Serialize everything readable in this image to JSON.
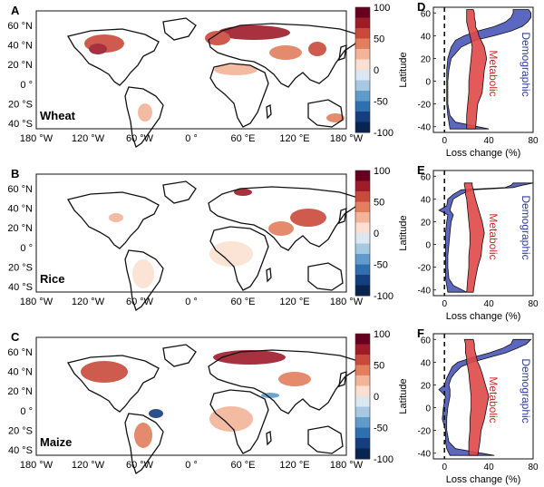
{
  "colors": {
    "coast": "#111111",
    "demographic_fill": "#4a56b8",
    "demographic_text": "#2e3b9e",
    "metabolic_fill": "#e04848",
    "metabolic_text": "#d02a2a",
    "colorbar": [
      "#67001f",
      "#9e1b2a",
      "#c94a3b",
      "#e37f5e",
      "#f3b49a",
      "#fbe0d2",
      "#dbe8f1",
      "#a6c9e1",
      "#5f9ccc",
      "#2f6fb0",
      "#143f7e",
      "#08244f"
    ]
  },
  "map_axes": {
    "lon_ticks": [
      "180 °W",
      "120 °W",
      "60 °W",
      "0 °",
      "60 °E",
      "120 °E",
      "180 °W"
    ],
    "lat_ticks": [
      "60 °N",
      "40 °N",
      "20 °N",
      "0 °",
      "20 °S",
      "40 °S"
    ]
  },
  "colorbar_ticks": [
    "100",
    "50",
    "0",
    "-50",
    "-100"
  ],
  "panels": [
    {
      "letter": "A",
      "crop": "Wheat",
      "profile_letter": "D"
    },
    {
      "letter": "B",
      "crop": "Rice",
      "profile_letter": "E"
    },
    {
      "letter": "C",
      "crop": "Maize",
      "profile_letter": "F"
    }
  ],
  "profile_axes": {
    "ylabel": "Latitude",
    "xlabel": "Loss change (%)",
    "x_ticks": [
      "0",
      "40",
      "80"
    ],
    "y_ticks": [
      "60",
      "40",
      "20",
      "0",
      "-20",
      "-40"
    ],
    "demographic_label": "Demographic",
    "metabolic_label": "Metabolic"
  },
  "chart_data": [
    {
      "type": "area",
      "panel": "D",
      "xlabel": "Loss change (%)",
      "ylabel": "Latitude",
      "xlim": [
        -10,
        80
      ],
      "ylim": [
        -45,
        65
      ],
      "series": [
        {
          "name": "Demographic",
          "lat": [
            -42,
            -36,
            -30,
            -20,
            -10,
            0,
            10,
            20,
            30,
            36,
            40,
            44,
            48,
            52,
            56,
            60,
            63
          ],
          "lower": [
            5,
            4,
            3,
            2,
            2,
            2,
            2,
            3,
            6,
            10,
            18,
            30,
            45,
            55,
            60,
            62,
            62
          ],
          "upper": [
            40,
            10,
            5,
            3,
            3,
            3,
            4,
            6,
            15,
            28,
            45,
            60,
            70,
            75,
            78,
            78,
            76
          ]
        },
        {
          "name": "Metabolic",
          "lat": [
            -42,
            -30,
            -20,
            -10,
            0,
            10,
            20,
            30,
            36,
            40,
            44,
            48,
            52,
            56,
            60,
            63
          ],
          "lower": [
            20,
            20,
            21,
            22,
            22,
            23,
            24,
            25,
            24,
            23,
            22,
            21,
            20,
            20,
            20,
            20
          ],
          "upper": [
            28,
            29,
            30,
            34,
            35,
            36,
            38,
            36,
            33,
            31,
            30,
            28,
            28,
            27,
            27,
            26
          ]
        }
      ]
    },
    {
      "type": "area",
      "panel": "E",
      "xlabel": "Loss change (%)",
      "ylabel": "Latitude",
      "xlim": [
        -10,
        80
      ],
      "ylim": [
        -45,
        65
      ],
      "series": [
        {
          "name": "Demographic",
          "lat": [
            -42,
            -36,
            -30,
            -20,
            -10,
            0,
            10,
            20,
            26,
            30,
            34,
            40,
            44,
            48,
            50,
            52,
            54
          ],
          "lower": [
            3,
            2,
            1,
            1,
            1,
            1,
            1,
            2,
            3,
            -5,
            2,
            3,
            8,
            15,
            55,
            60,
            62
          ],
          "upper": [
            20,
            8,
            4,
            3,
            3,
            4,
            5,
            6,
            8,
            5,
            6,
            8,
            15,
            25,
            62,
            70,
            80
          ]
        },
        {
          "name": "Metabolic",
          "lat": [
            -42,
            -30,
            -20,
            -10,
            0,
            10,
            20,
            30,
            40,
            44,
            48,
            52,
            54
          ],
          "lower": [
            20,
            21,
            22,
            22,
            23,
            23,
            22,
            21,
            20,
            19,
            19,
            18,
            18
          ],
          "upper": [
            26,
            28,
            30,
            33,
            34,
            36,
            34,
            31,
            28,
            27,
            26,
            25,
            25
          ]
        }
      ]
    },
    {
      "type": "area",
      "panel": "F",
      "xlabel": "Loss change (%)",
      "ylabel": "Latitude",
      "xlim": [
        -10,
        80
      ],
      "ylim": [
        -45,
        65
      ],
      "series": [
        {
          "name": "Demographic",
          "lat": [
            -42,
            -36,
            -30,
            -20,
            -10,
            0,
            10,
            16,
            20,
            26,
            30,
            36,
            40,
            44,
            48,
            52,
            56,
            60
          ],
          "lower": [
            5,
            2,
            1,
            1,
            -2,
            -1,
            1,
            -5,
            0,
            2,
            4,
            7,
            12,
            25,
            40,
            52,
            60,
            62
          ],
          "upper": [
            45,
            10,
            4,
            2,
            2,
            3,
            5,
            5,
            4,
            6,
            9,
            15,
            25,
            40,
            55,
            65,
            74,
            78
          ]
        },
        {
          "name": "Metabolic",
          "lat": [
            -42,
            -30,
            -20,
            -10,
            0,
            10,
            20,
            30,
            36,
            40,
            44,
            48,
            52,
            56,
            60
          ],
          "lower": [
            22,
            22,
            23,
            23,
            24,
            24,
            23,
            22,
            21,
            20,
            20,
            19,
            19,
            19,
            18
          ],
          "upper": [
            30,
            32,
            33,
            36,
            38,
            40,
            37,
            34,
            32,
            30,
            29,
            28,
            27,
            27,
            26
          ]
        }
      ]
    }
  ]
}
